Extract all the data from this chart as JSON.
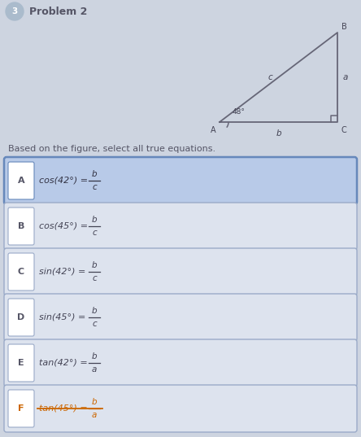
{
  "title": "Problem 2",
  "problem_number": "3",
  "instruction": "Based on the figure, select all true equations.",
  "options": [
    {
      "label": "A",
      "text": "cos(42°) = ",
      "frac_num": "b",
      "frac_den": "c",
      "highlighted": true,
      "orange": false
    },
    {
      "label": "B",
      "text": "cos(45°) = ",
      "frac_num": "b",
      "frac_den": "c",
      "highlighted": false,
      "orange": false
    },
    {
      "label": "C",
      "text": "sin(42°) = ",
      "frac_num": "b",
      "frac_den": "c",
      "highlighted": false,
      "orange": false
    },
    {
      "label": "D",
      "text": "sin(45°) = ",
      "frac_num": "b",
      "frac_den": "c",
      "highlighted": false,
      "orange": false
    },
    {
      "label": "E",
      "text": "tan(42°) = ",
      "frac_num": "b",
      "frac_den": "a",
      "highlighted": false,
      "orange": false
    },
    {
      "label": "F",
      "text": "tan(45°) = ",
      "frac_num": "b",
      "frac_den": "a",
      "highlighted": false,
      "orange": true,
      "strikethrough": true
    }
  ],
  "bg_color": "#cdd4e0",
  "option_bg_normal": "#dde3ee",
  "option_bg_highlighted": "#b8cae8",
  "option_border_normal": "#9aaac8",
  "option_border_highlighted": "#6688bb",
  "title_color": "#555566",
  "label_color": "#555566",
  "text_color": "#444455",
  "highlight_text_color": "#333344",
  "problem_num_color": "#aabbcc",
  "orange_color": "#cc6600",
  "fig_width": 4.44,
  "fig_height": 5.37
}
